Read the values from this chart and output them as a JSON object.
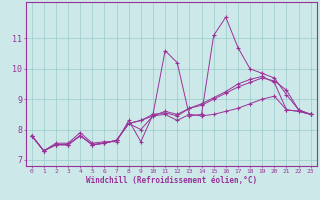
{
  "xlabel": "Windchill (Refroidissement éolien,°C)",
  "bg_color": "#cce8e8",
  "grid_color": "#99cccc",
  "line_color": "#993399",
  "spine_color": "#993399",
  "xlim": [
    -0.5,
    23.5
  ],
  "ylim": [
    6.8,
    12.2
  ],
  "xticks": [
    0,
    1,
    2,
    3,
    4,
    5,
    6,
    7,
    8,
    9,
    10,
    11,
    12,
    13,
    14,
    15,
    16,
    17,
    18,
    19,
    20,
    21,
    22,
    23
  ],
  "yticks": [
    7,
    8,
    9,
    10,
    11
  ],
  "series": [
    [
      7.8,
      7.3,
      7.55,
      7.55,
      7.9,
      7.55,
      7.6,
      7.6,
      8.3,
      7.6,
      8.5,
      10.6,
      10.2,
      8.45,
      8.5,
      11.1,
      11.7,
      10.7,
      10.0,
      9.85,
      9.7,
      9.15,
      8.65,
      8.5
    ],
    [
      7.8,
      7.3,
      7.5,
      7.5,
      7.8,
      7.5,
      7.55,
      7.65,
      8.2,
      8.3,
      8.5,
      8.55,
      8.45,
      8.7,
      8.8,
      9.0,
      9.2,
      9.4,
      9.55,
      9.7,
      9.6,
      9.3,
      8.65,
      8.5
    ],
    [
      7.8,
      7.3,
      7.5,
      7.5,
      7.8,
      7.5,
      7.55,
      7.65,
      8.2,
      8.3,
      8.45,
      8.6,
      8.5,
      8.7,
      8.85,
      9.05,
      9.25,
      9.5,
      9.65,
      9.75,
      9.55,
      8.65,
      8.6,
      8.5
    ],
    [
      7.8,
      7.3,
      7.5,
      7.5,
      7.8,
      7.5,
      7.55,
      7.65,
      8.2,
      8.0,
      8.45,
      8.5,
      8.3,
      8.5,
      8.45,
      8.5,
      8.6,
      8.7,
      8.85,
      9.0,
      9.1,
      8.65,
      8.6,
      8.5
    ]
  ]
}
